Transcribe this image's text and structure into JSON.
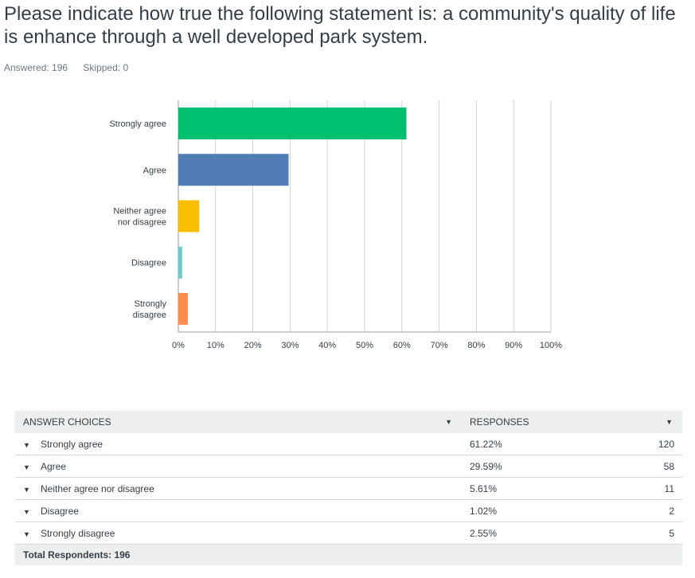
{
  "question": {
    "title": "Please indicate how true the following statement is: a community's quality of life is enhance through a well developed park system.",
    "answered": "Answered: 196",
    "skipped": "Skipped: 0"
  },
  "chart_data": {
    "type": "bar",
    "orientation": "horizontal",
    "categories": [
      [
        "Strongly agree"
      ],
      [
        "Agree"
      ],
      [
        "Neither agree",
        "nor disagree"
      ],
      [
        "Disagree"
      ],
      [
        "Strongly",
        "disagree"
      ]
    ],
    "values": [
      61.22,
      29.59,
      5.61,
      1.02,
      2.55
    ],
    "colors": [
      "#00bf6f",
      "#507cb6",
      "#f9be00",
      "#6bc8cd",
      "#ff8b4f"
    ],
    "xlim": [
      0,
      100
    ],
    "ticks": [
      "0%",
      "10%",
      "20%",
      "30%",
      "40%",
      "50%",
      "60%",
      "70%",
      "80%",
      "90%",
      "100%"
    ],
    "grid": true
  },
  "table": {
    "headers": {
      "choices": "ANSWER CHOICES",
      "responses": "RESPONSES"
    },
    "rows": [
      {
        "choice": "Strongly agree",
        "percent": "61.22%",
        "count": "120"
      },
      {
        "choice": "Agree",
        "percent": "29.59%",
        "count": "58"
      },
      {
        "choice": "Neither agree nor disagree",
        "percent": "5.61%",
        "count": "11"
      },
      {
        "choice": "Disagree",
        "percent": "1.02%",
        "count": "2"
      },
      {
        "choice": "Strongly disagree",
        "percent": "2.55%",
        "count": "5"
      }
    ],
    "total": "Total Respondents: 196",
    "caret": "▼"
  }
}
